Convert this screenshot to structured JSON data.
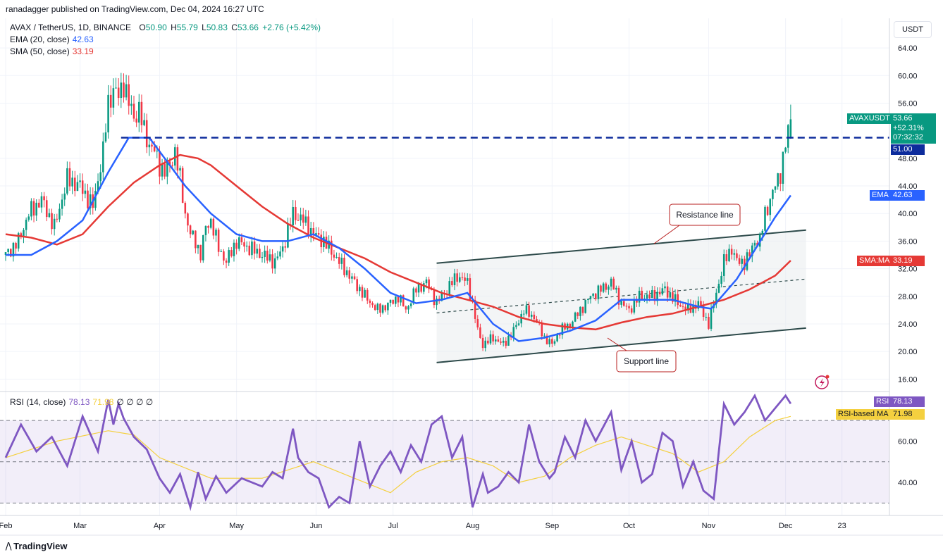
{
  "header": {
    "publisher": "ranadagger published on TradingView.com, Dec 04, 2024 16:27 UTC",
    "currency_button": "USDT",
    "logo_text": "TradingView"
  },
  "legend": {
    "symbol": "AVAX / TetherUS, 1D, BINANCE",
    "o_label": "O",
    "o": "50.90",
    "h_label": "H",
    "h": "55.79",
    "l_label": "L",
    "l": "50.83",
    "c_label": "C",
    "c": "53.66",
    "change": "+2.76 (+5.42%)",
    "ema_label": "EMA (20, close)",
    "ema_value": "42.63",
    "sma_label": "SMA (50, close)",
    "sma_value": "33.19",
    "rsi_label": "RSI (14, close)",
    "rsi_value": "78.13",
    "rsi_ma_value": "71.98",
    "rsi_extra": "∅ ∅ ∅ ∅"
  },
  "price_tags": {
    "symbol": "AVAXUSDT",
    "price": "53.66",
    "change_pct": "+52.31%",
    "countdown": "07:32:32",
    "level": "51.00",
    "ema_name": "EMA",
    "ema": "42.63",
    "sma_name": "SMA:MA",
    "sma": "33.19",
    "rsi_name": "RSI",
    "rsi": "78.13",
    "rsi_ma_name": "RSI-based MA",
    "rsi_ma": "71.98"
  },
  "annotations": {
    "resistance": "Resistance line",
    "support": "Support line"
  },
  "colors": {
    "bull": "#089981",
    "bear": "#f23645",
    "ema": "#2962ff",
    "sma": "#e53935",
    "rsi": "#7e57c2",
    "rsi_ma": "#f4d03f",
    "level": "#0d2c9c",
    "channel": "#2d4a4a"
  },
  "chart_data": {
    "type": "candlestick",
    "title": "AVAX / TetherUS, 1D, BINANCE",
    "price_axis": {
      "ticks": [
        16,
        20,
        24,
        28,
        32,
        36,
        40,
        44,
        48,
        56,
        60,
        64
      ],
      "tick_labels": [
        "16.00",
        "20.00",
        "24.00",
        "28.00",
        "32.00",
        "36.00",
        "40.00",
        "44.00",
        "48.00",
        "56.00",
        "60.00",
        "64.00"
      ],
      "ylim": [
        14.2,
        68.3
      ]
    },
    "time_axis": {
      "labels": [
        "Feb",
        "Mar",
        "Apr",
        "May",
        "Jun",
        "Jul",
        "Aug",
        "Sep",
        "Oct",
        "Nov",
        "Dec",
        "23"
      ],
      "x_days": [
        0,
        29,
        60,
        90,
        121,
        151,
        182,
        213,
        243,
        274,
        304,
        326
      ],
      "xlim": [
        0,
        339
      ]
    },
    "close_series": {
      "x_day": [
        0,
        5,
        9,
        14,
        19,
        24,
        29,
        34,
        38,
        40,
        42,
        44,
        46,
        48,
        50,
        52,
        54,
        56,
        58,
        60,
        62,
        64,
        66,
        68,
        70,
        72,
        74,
        76,
        78,
        80,
        83,
        86,
        90,
        95,
        100,
        105,
        108,
        112,
        116,
        120,
        124,
        128,
        132,
        136,
        140,
        145,
        150,
        153,
        156,
        160,
        164,
        168,
        172,
        176,
        180,
        182,
        184,
        186,
        190,
        194,
        198,
        202,
        206,
        210,
        213,
        216,
        220,
        224,
        228,
        232,
        236,
        240,
        243,
        247,
        252,
        257,
        262,
        266,
        270,
        274,
        276,
        278,
        280,
        283,
        285,
        288,
        290,
        292,
        294,
        296,
        298,
        300,
        302,
        304,
        306
      ],
      "close": [
        34,
        36,
        40,
        42,
        38,
        45,
        44,
        41,
        49,
        56,
        58,
        57,
        59,
        56,
        54,
        55,
        52,
        50,
        49,
        47,
        46,
        47,
        49,
        45,
        40,
        37,
        36,
        34,
        38,
        39,
        35,
        33,
        36,
        35,
        34,
        33,
        35,
        40,
        39,
        37,
        36,
        34,
        32,
        30,
        28,
        26,
        27,
        28,
        26,
        29,
        30,
        27,
        29,
        31,
        30,
        27,
        23,
        21,
        22,
        21,
        23,
        26,
        25,
        22,
        21,
        23,
        24,
        26,
        28,
        29,
        30,
        27,
        26,
        28,
        28,
        29,
        27,
        26,
        27,
        24,
        27,
        30,
        33,
        35,
        33,
        33,
        34,
        36,
        36,
        40,
        42,
        44,
        46,
        50,
        53.66
      ]
    },
    "ema20": {
      "x_day": [
        0,
        10,
        20,
        30,
        40,
        48,
        56,
        62,
        70,
        80,
        90,
        100,
        110,
        120,
        130,
        140,
        150,
        160,
        170,
        180,
        190,
        200,
        210,
        220,
        230,
        240,
        250,
        260,
        270,
        275,
        285,
        295,
        300,
        306
      ],
      "values": [
        34,
        34,
        36,
        39,
        46,
        51,
        51,
        48,
        44,
        40,
        37,
        36,
        36,
        37,
        35,
        32,
        28.5,
        27,
        27.5,
        28.5,
        24,
        21.5,
        22,
        23,
        24.5,
        27.5,
        27.5,
        27.5,
        26.5,
        26.2,
        30.5,
        36.5,
        39.5,
        42.63
      ]
    },
    "sma50": {
      "x_day": [
        0,
        10,
        20,
        30,
        40,
        50,
        60,
        68,
        75,
        80,
        90,
        100,
        110,
        120,
        130,
        140,
        150,
        160,
        170,
        180,
        190,
        200,
        210,
        220,
        230,
        240,
        250,
        260,
        270,
        280,
        290,
        300,
        306
      ],
      "values": [
        37,
        36.5,
        35.5,
        37,
        41,
        44.5,
        47,
        48.5,
        48,
        47,
        44,
        41,
        38.5,
        36.5,
        35,
        33.5,
        31.5,
        30,
        28.5,
        27.5,
        26.5,
        25,
        24,
        23.5,
        23.2,
        24.2,
        25,
        25.5,
        26.5,
        27.5,
        29,
        31,
        33.19
      ]
    },
    "level_line": {
      "value": 51.0,
      "from_day": 45,
      "to_day": 306
    },
    "channel": {
      "resistance": [
        [
          168,
          32.8
        ],
        [
          312,
          37.6
        ]
      ],
      "support": [
        [
          168,
          18.4
        ],
        [
          312,
          23.4
        ]
      ],
      "midline": [
        [
          168,
          25.6
        ],
        [
          312,
          30.5
        ]
      ]
    },
    "rsi": {
      "axis": {
        "ticks": [
          40,
          60
        ],
        "tick_labels": [
          "40.00",
          "60.00"
        ],
        "ylim": [
          24,
          84
        ],
        "bands": [
          30,
          50,
          70
        ]
      },
      "x_day": [
        0,
        6,
        12,
        18,
        24,
        30,
        36,
        40,
        42,
        44,
        46,
        50,
        55,
        60,
        64,
        68,
        72,
        75,
        78,
        82,
        86,
        92,
        100,
        104,
        108,
        112,
        114,
        118,
        122,
        126,
        130,
        134,
        138,
        142,
        146,
        150,
        154,
        158,
        162,
        166,
        170,
        174,
        178,
        182,
        186,
        188,
        192,
        196,
        200,
        204,
        208,
        212,
        214,
        218,
        222,
        226,
        230,
        236,
        240,
        244,
        248,
        252,
        256,
        260,
        264,
        268,
        272,
        276,
        280,
        284,
        288,
        292,
        296,
        300,
        304,
        306
      ],
      "values": [
        52,
        68,
        55,
        62,
        48,
        72,
        55,
        80,
        68,
        78,
        71,
        62,
        56,
        42,
        35,
        44,
        28,
        45,
        32,
        43,
        35,
        42,
        38,
        45,
        42,
        66,
        52,
        45,
        42,
        28,
        33,
        30,
        60,
        38,
        48,
        55,
        45,
        58,
        50,
        68,
        72,
        52,
        62,
        28,
        44,
        35,
        38,
        45,
        40,
        68,
        50,
        42,
        45,
        62,
        52,
        70,
        60,
        74,
        46,
        60,
        40,
        44,
        64,
        60,
        38,
        50,
        36,
        32,
        78,
        68,
        74,
        82,
        70,
        76,
        82,
        78.13
      ]
    },
    "rsi_ma": {
      "x_day": [
        0,
        20,
        40,
        50,
        60,
        80,
        100,
        120,
        140,
        150,
        160,
        170,
        180,
        190,
        200,
        210,
        220,
        230,
        240,
        250,
        260,
        270,
        280,
        290,
        300,
        306
      ],
      "values": [
        52,
        60,
        65,
        63,
        52,
        42,
        42,
        50,
        40,
        35,
        45,
        50,
        52,
        48,
        40,
        43,
        52,
        58,
        62,
        58,
        54,
        45,
        50,
        62,
        70,
        71.98
      ]
    }
  }
}
